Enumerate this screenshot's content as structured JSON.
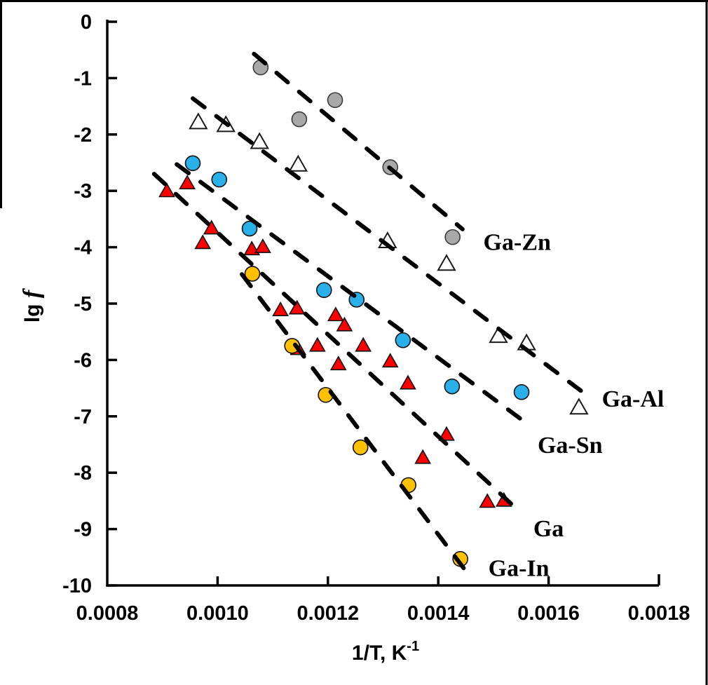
{
  "figure": {
    "background": "#ffffff",
    "border_color": "#000000"
  },
  "chart_data": {
    "type": "scatter",
    "title": "",
    "xlabel": {
      "text": "1/T, K",
      "superscript": "-1"
    },
    "ylabel": {
      "text": "lg",
      "italic": "f"
    },
    "grid": false,
    "legend_position": "inline-labels",
    "x_axis": {
      "min": 0.0008,
      "max": 0.0018,
      "tick_step": 0.0002,
      "tick_labels": [
        "0.0008",
        "0.0010",
        "0.0012",
        "0.0014",
        "0.0016",
        "0.0018"
      ]
    },
    "y_axis": {
      "min": -10,
      "max": 0,
      "tick_step": 1,
      "tick_labels": [
        "0",
        "-1",
        "-2",
        "-3",
        "-4",
        "-5",
        "-6",
        "-7",
        "-8",
        "-9",
        "-10"
      ]
    },
    "trend_line_style": {
      "color": "#000000",
      "style": "dashed",
      "width": 6
    },
    "series": [
      {
        "name": "Ga-Zn",
        "marker": "circle",
        "fill": "#a8a8a8",
        "stroke": "#3a3a3a",
        "points": [
          [
            0.001078,
            -0.81
          ],
          [
            0.001148,
            -1.73
          ],
          [
            0.001213,
            -1.39
          ],
          [
            0.001313,
            -2.58
          ],
          [
            0.001426,
            -3.82
          ]
        ],
        "trend": {
          "x1": 0.001066,
          "y1": -0.57,
          "x2": 0.001444,
          "y2": -3.68
        },
        "label": {
          "text": "Ga-Zn",
          "x": 0.001543,
          "y": -3.9
        }
      },
      {
        "name": "Ga-Al",
        "marker": "triangle-open",
        "fill": "#ffffff",
        "stroke": "#1a1a1a",
        "points": [
          [
            0.000965,
            -1.79
          ],
          [
            0.001015,
            -1.84
          ],
          [
            0.001076,
            -2.14
          ],
          [
            0.001146,
            -2.54
          ],
          [
            0.001308,
            -3.9
          ],
          [
            0.001415,
            -4.3
          ],
          [
            0.001509,
            -5.58
          ],
          [
            0.00156,
            -5.71
          ],
          [
            0.001655,
            -6.85
          ]
        ],
        "trend": {
          "x1": 0.000955,
          "y1": -1.36,
          "x2": 0.00167,
          "y2": -6.63
        },
        "label": {
          "text": "Ga-Al",
          "x": 0.001753,
          "y": -6.68
        }
      },
      {
        "name": "Ga-Sn",
        "marker": "circle",
        "fill": "#2ab0e8",
        "stroke": "#111111",
        "points": [
          [
            0.000955,
            -2.51
          ],
          [
            0.001003,
            -2.8
          ],
          [
            0.001058,
            -3.67
          ],
          [
            0.001193,
            -4.76
          ],
          [
            0.001252,
            -4.93
          ],
          [
            0.001336,
            -5.65
          ],
          [
            0.001425,
            -6.47
          ],
          [
            0.001551,
            -6.57
          ]
        ],
        "trend": {
          "x1": 0.000926,
          "y1": -2.53,
          "x2": 0.001561,
          "y2": -7.13
        },
        "label": {
          "text": "Ga-Sn",
          "x": 0.001639,
          "y": -7.5
        }
      },
      {
        "name": "Ga",
        "marker": "triangle",
        "fill": "#fe0000",
        "stroke": "#111111",
        "points": [
          [
            0.000908,
            -3.01
          ],
          [
            0.000945,
            -2.87
          ],
          [
            0.000989,
            -3.67
          ],
          [
            0.000973,
            -3.93
          ],
          [
            0.001062,
            -4.04
          ],
          [
            0.001082,
            -4.0
          ],
          [
            0.001114,
            -5.12
          ],
          [
            0.001144,
            -5.09
          ],
          [
            0.001214,
            -5.21
          ],
          [
            0.00123,
            -5.39
          ],
          [
            0.001146,
            -5.81
          ],
          [
            0.001181,
            -5.75
          ],
          [
            0.001264,
            -5.75
          ],
          [
            0.001219,
            -6.08
          ],
          [
            0.001313,
            -6.03
          ],
          [
            0.001345,
            -6.42
          ],
          [
            0.001415,
            -7.33
          ],
          [
            0.001372,
            -7.74
          ],
          [
            0.001489,
            -8.52
          ],
          [
            0.001519,
            -8.5
          ]
        ],
        "trend": {
          "x1": 0.000885,
          "y1": -2.7,
          "x2": 0.001542,
          "y2": -8.64
        },
        "label": {
          "text": "Ga",
          "x": 0.0016,
          "y": -8.98
        }
      },
      {
        "name": "Ga-In",
        "marker": "circle",
        "fill": "#ffc000",
        "stroke": "#111111",
        "points": [
          [
            0.001063,
            -4.47
          ],
          [
            0.001135,
            -5.75
          ],
          [
            0.001196,
            -6.62
          ],
          [
            0.001259,
            -7.55
          ],
          [
            0.001346,
            -8.22
          ],
          [
            0.00144,
            -9.53
          ]
        ],
        "trend": {
          "x1": 0.001044,
          "y1": -4.48,
          "x2": 0.001462,
          "y2": -9.9
        },
        "label": {
          "text": "Ga-In",
          "x": 0.001546,
          "y": -9.68
        }
      }
    ]
  }
}
